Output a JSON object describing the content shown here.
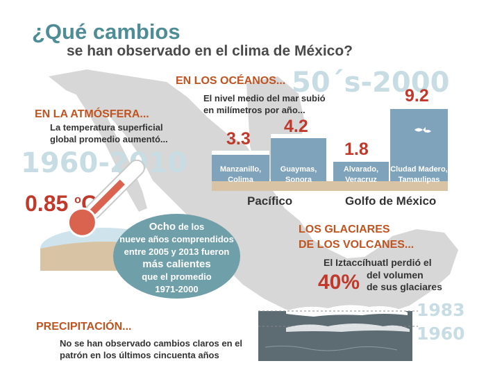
{
  "title": {
    "line1": "¿Qué cambios",
    "line2": "se han observado en el clima de México?"
  },
  "atmosphere": {
    "heading": "EN LA ATMÓSFERA...",
    "text1": "La temperatura superficial",
    "text2": "global promedio aumentó...",
    "period": "1960-2010",
    "value": "0.85",
    "unit_deg": "o",
    "unit_c": "C"
  },
  "oceans": {
    "heading": "EN LOS OCÉANOS...",
    "text1": "El nivel medio del mar subió",
    "text2": "en milímetros por año...",
    "period": "50´s-2000",
    "stations": [
      {
        "value": "3.3",
        "line1": "Manzanillo,",
        "line2": "Colima"
      },
      {
        "value": "4.2",
        "line1": "Guaymas,",
        "line2": "Sonora"
      },
      {
        "value": "1.8",
        "line1": "Alvarado,",
        "line2": "Veracruz"
      },
      {
        "value": "9.2",
        "line1": "Cludad Madero,",
        "line2": "Tamaulipas"
      }
    ],
    "basin_pacific": "Pacífico",
    "basin_gulf": "Golfo de México"
  },
  "warm_years": {
    "p1a": "Ocho",
    "p1b": " de los",
    "p2": "nueve años comprendidos",
    "p3": "entre 2005 y 2013 fueron",
    "p4": "más calientes",
    "p5": "que el promedio",
    "p6": "1971-2000"
  },
  "glaciers": {
    "heading1": "LOS GLACIARES",
    "heading2": "DE LOS VOLCANES...",
    "text1": "El Iztaccíhuatl perdió el",
    "percent": "40%",
    "text2": "del volumen",
    "text3": "de sus glaciares",
    "year_recent": "1983",
    "year_old": "1960"
  },
  "precipitation": {
    "heading": "PRECIPITACIÓN...",
    "text1": "No se han observado cambios claros en el",
    "text2": "patrón en los últimos cincuenta años"
  },
  "colors": {
    "teal": "#4e8c96",
    "orange": "#c0531f",
    "red": "#c0392b",
    "water": "#7fa3bb",
    "map": "#d7d7d7"
  }
}
